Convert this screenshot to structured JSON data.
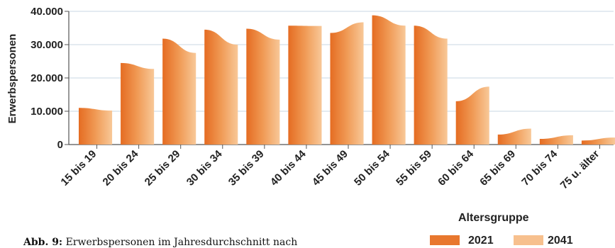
{
  "chart_data": {
    "type": "bar",
    "xlabel": "Altersgruppe",
    "ylabel": "Erwerbspersonen",
    "ylim": [
      0,
      40000
    ],
    "yticks": [
      "0",
      "10.000",
      "20.000",
      "30.000",
      "40.000"
    ],
    "ytick_values": [
      0,
      10000,
      20000,
      30000,
      40000
    ],
    "grid": true,
    "legend_position": "bottom-right",
    "categories": [
      "15 bis 19",
      "20 bis 24",
      "25 bis 29",
      "30 bis 34",
      "35 bis 39",
      "40 bis 44",
      "45 bis 49",
      "50 bis 54",
      "55 bis 59",
      "60 bis 64",
      "65 bis 69",
      "70 bis 74",
      "75 u. älter"
    ],
    "series": [
      {
        "name": "2021",
        "color": "#e8772e",
        "values": [
          11000,
          24500,
          31800,
          34500,
          34800,
          35700,
          33500,
          38800,
          35700,
          13000,
          3000,
          1700,
          1200
        ]
      },
      {
        "name": "2041",
        "color": "#f7c08e",
        "values": [
          10200,
          22700,
          27500,
          30000,
          31500,
          35600,
          36700,
          35700,
          31800,
          17400,
          4800,
          2800,
          2100
        ]
      }
    ]
  },
  "caption": {
    "label": "Abb. 9:",
    "text": "Erwerbspersonen im Jahresdurchschnitt nach"
  }
}
